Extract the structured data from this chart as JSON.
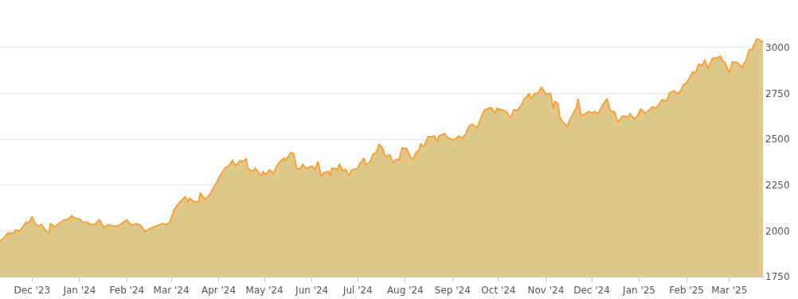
{
  "chart_data": {
    "type": "area",
    "x": [
      "2023-11-10",
      "2023-11-13",
      "2023-11-15",
      "2023-11-19",
      "2023-11-20",
      "2023-11-23",
      "2023-11-25",
      "2023-11-27",
      "2023-11-29",
      "2023-12-01",
      "2023-12-03",
      "2023-12-05",
      "2023-12-07",
      "2023-12-11",
      "2023-12-12",
      "2023-12-13",
      "2023-12-16",
      "2023-12-19",
      "2023-12-22",
      "2023-12-24",
      "2023-12-27",
      "2023-12-29",
      "2024-01-01",
      "2024-01-03",
      "2024-01-06",
      "2024-01-08",
      "2024-01-11",
      "2024-01-14",
      "2024-01-17",
      "2024-01-20",
      "2024-01-23",
      "2024-01-26",
      "2024-01-29",
      "2024-02-01",
      "2024-02-04",
      "2024-02-07",
      "2024-02-10",
      "2024-02-13",
      "2024-02-16",
      "2024-02-20",
      "2024-02-24",
      "2024-02-27",
      "2024-02-29",
      "2024-03-03",
      "2024-03-06",
      "2024-03-10",
      "2024-03-12",
      "2024-03-13",
      "2024-03-16",
      "2024-03-19",
      "2024-03-20",
      "2024-03-23",
      "2024-03-26",
      "2024-03-30",
      "2024-04-02",
      "2024-04-05",
      "2024-04-08",
      "2024-04-10",
      "2024-04-12",
      "2024-04-15",
      "2024-04-16",
      "2024-04-19",
      "2024-04-20",
      "2024-04-23",
      "2024-04-25",
      "2024-04-29",
      "2024-04-30",
      "2024-05-02",
      "2024-05-04",
      "2024-05-07",
      "2024-05-09",
      "2024-05-10",
      "2024-05-12",
      "2024-05-14",
      "2024-05-15",
      "2024-05-18",
      "2024-05-20",
      "2024-05-22",
      "2024-05-24",
      "2024-05-26",
      "2024-05-28",
      "2024-05-30",
      "2024-06-01",
      "2024-06-03",
      "2024-06-05",
      "2024-06-07",
      "2024-06-09",
      "2024-06-12",
      "2024-06-13",
      "2024-06-14",
      "2024-06-18",
      "2024-06-19",
      "2024-06-21",
      "2024-06-23",
      "2024-06-25",
      "2024-06-27",
      "2024-07-01",
      "2024-07-02",
      "2024-07-05",
      "2024-07-06",
      "2024-07-09",
      "2024-07-11",
      "2024-07-13",
      "2024-07-15",
      "2024-07-17",
      "2024-07-19",
      "2024-07-22",
      "2024-07-24",
      "2024-07-26",
      "2024-07-28",
      "2024-07-30",
      "2024-08-02",
      "2024-08-04",
      "2024-08-06",
      "2024-08-08",
      "2024-08-10",
      "2024-08-11",
      "2024-08-13",
      "2024-08-16",
      "2024-08-18",
      "2024-08-20",
      "2024-08-22",
      "2024-08-23",
      "2024-08-27",
      "2024-08-28",
      "2024-08-30",
      "2024-09-02",
      "2024-09-05",
      "2024-09-07",
      "2024-09-09",
      "2024-09-12",
      "2024-09-14",
      "2024-09-17",
      "2024-09-20",
      "2024-09-22",
      "2024-09-25",
      "2024-09-26",
      "2024-09-29",
      "2024-09-30",
      "2024-10-03",
      "2024-10-06",
      "2024-10-09",
      "2024-10-11",
      "2024-10-13",
      "2024-10-16",
      "2024-10-18",
      "2024-10-19",
      "2024-10-21",
      "2024-10-22",
      "2024-10-25",
      "2024-10-27",
      "2024-10-29",
      "2024-11-01",
      "2024-11-04",
      "2024-11-06",
      "2024-11-07",
      "2024-11-09",
      "2024-11-10",
      "2024-11-12",
      "2024-11-15",
      "2024-11-17",
      "2024-11-21",
      "2024-11-22",
      "2024-11-24",
      "2024-11-26",
      "2024-11-29",
      "2024-12-01",
      "2024-12-03",
      "2024-12-05",
      "2024-12-08",
      "2024-12-11",
      "2024-12-13",
      "2024-12-16",
      "2024-12-18",
      "2024-12-21",
      "2024-12-25",
      "2024-12-26",
      "2024-12-29",
      "2024-12-31",
      "2025-01-02",
      "2025-01-05",
      "2025-01-10",
      "2025-01-12",
      "2025-01-16",
      "2025-01-19",
      "2025-01-21",
      "2025-01-24",
      "2025-01-26",
      "2025-01-28",
      "2025-01-30",
      "2025-02-01",
      "2025-02-05",
      "2025-02-07",
      "2025-02-09",
      "2025-02-11",
      "2025-02-13",
      "2025-02-15",
      "2025-02-18",
      "2025-02-21",
      "2025-02-23",
      "2025-02-25",
      "2025-02-26",
      "2025-03-01",
      "2025-03-03",
      "2025-03-06",
      "2025-03-08",
      "2025-03-09",
      "2025-03-12",
      "2025-03-14",
      "2025-03-16",
      "2025-03-17",
      "2025-03-19",
      "2025-03-21",
      "2025-03-23"
    ],
    "series": [
      {
        "color": "#f7a13a",
        "values": [
          1944,
          1966,
          1987,
          1987,
          2004,
          2000,
          2022,
          2047,
          2043,
          2078,
          2039,
          2026,
          2035,
          1991,
          1987,
          2039,
          2022,
          2043,
          2060,
          2060,
          2082,
          2069,
          2065,
          2047,
          2047,
          2035,
          2035,
          2060,
          2017,
          2035,
          2026,
          2026,
          2043,
          2060,
          2030,
          2039,
          2030,
          1996,
          2013,
          2026,
          2039,
          2035,
          2047,
          2116,
          2151,
          2185,
          2159,
          2177,
          2159,
          2159,
          2207,
          2172,
          2194,
          2254,
          2302,
          2341,
          2358,
          2384,
          2354,
          2384,
          2375,
          2392,
          2341,
          2323,
          2341,
          2297,
          2323,
          2306,
          2332,
          2315,
          2354,
          2366,
          2384,
          2397,
          2384,
          2427,
          2422,
          2341,
          2336,
          2362,
          2341,
          2345,
          2354,
          2336,
          2379,
          2297,
          2319,
          2323,
          2302,
          2341,
          2336,
          2366,
          2328,
          2336,
          2302,
          2332,
          2341,
          2362,
          2397,
          2362,
          2375,
          2418,
          2427,
          2470,
          2453,
          2405,
          2414,
          2371,
          2388,
          2388,
          2453,
          2448,
          2410,
          2388,
          2427,
          2440,
          2474,
          2457,
          2513,
          2513,
          2517,
          2487,
          2517,
          2530,
          2513,
          2504,
          2496,
          2517,
          2504,
          2522,
          2573,
          2582,
          2560,
          2625,
          2660,
          2668,
          2672,
          2642,
          2668,
          2660,
          2651,
          2616,
          2660,
          2655,
          2685,
          2724,
          2724,
          2750,
          2720,
          2750,
          2750,
          2785,
          2746,
          2750,
          2664,
          2707,
          2690,
          2621,
          2595,
          2569,
          2612,
          2672,
          2720,
          2629,
          2634,
          2651,
          2642,
          2651,
          2638,
          2685,
          2720,
          2655,
          2647,
          2591,
          2625,
          2621,
          2638,
          2608,
          2629,
          2664,
          2642,
          2677,
          2668,
          2715,
          2707,
          2754,
          2763,
          2746,
          2763,
          2797,
          2806,
          2866,
          2862,
          2909,
          2901,
          2931,
          2884,
          2940,
          2944,
          2953,
          2922,
          2918,
          2862,
          2922,
          2918,
          2905,
          2888,
          2931,
          2987,
          2991,
          3013,
          3047,
          3039,
          3030
        ]
      }
    ],
    "xlim": [
      "2023-11-10",
      "2025-03-24"
    ],
    "xticks": [
      {
        "value": "2023-12-01",
        "label": "Dec '23"
      },
      {
        "value": "2024-01-01",
        "label": "Jan '24"
      },
      {
        "value": "2024-02-01",
        "label": "Feb '24"
      },
      {
        "value": "2024-03-01",
        "label": "Mar '24"
      },
      {
        "value": "2024-04-01",
        "label": "Apr '24"
      },
      {
        "value": "2024-05-01",
        "label": "May '24"
      },
      {
        "value": "2024-06-01",
        "label": "Jun '24"
      },
      {
        "value": "2024-07-01",
        "label": "Jul '24"
      },
      {
        "value": "2024-08-01",
        "label": "Aug '24"
      },
      {
        "value": "2024-09-01",
        "label": "Sep '24"
      },
      {
        "value": "2024-10-01",
        "label": "Oct '24"
      },
      {
        "value": "2024-11-01",
        "label": "Nov '24"
      },
      {
        "value": "2024-12-01",
        "label": "Dec '24"
      },
      {
        "value": "2025-01-01",
        "label": "Jan '25"
      },
      {
        "value": "2025-02-01",
        "label": "Feb '25"
      },
      {
        "value": "2025-03-01",
        "label": "Mar '25"
      }
    ],
    "ylim": [
      1750,
      3250
    ],
    "yticks": [
      1750,
      2000,
      2250,
      2500,
      2750,
      3000
    ],
    "grid": "y",
    "marker": "none",
    "line_style": "solid"
  }
}
